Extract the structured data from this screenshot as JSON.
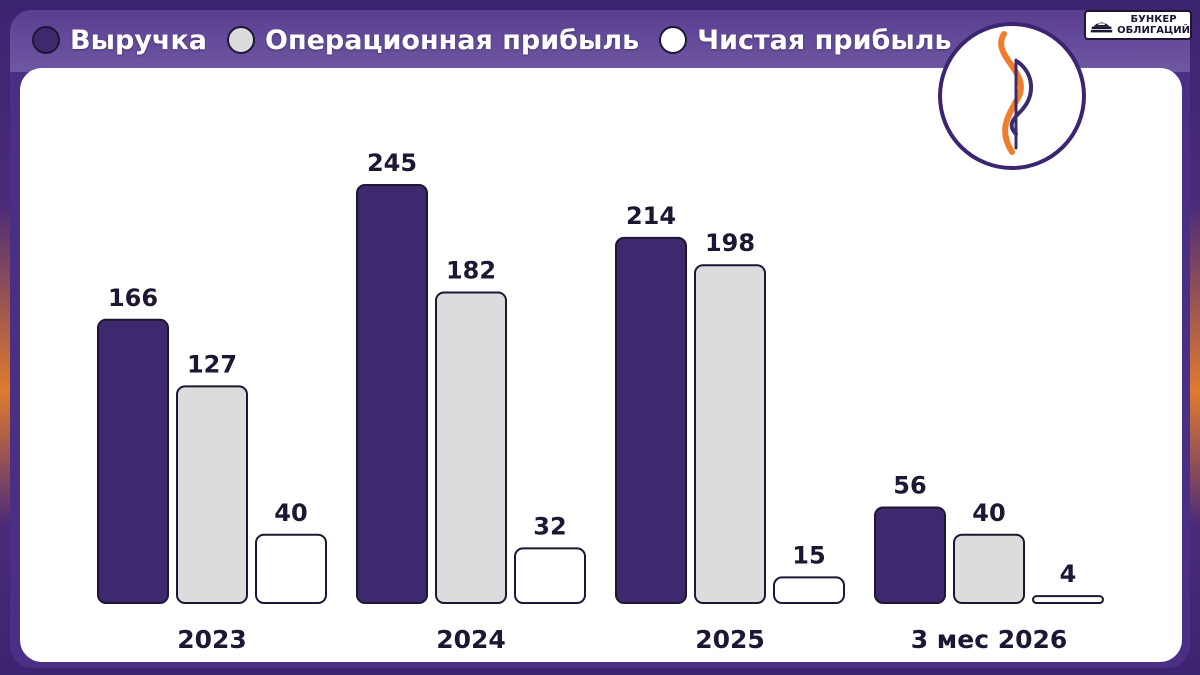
{
  "legend": [
    {
      "label": "Выручка",
      "color": "#3d2a6e"
    },
    {
      "label": "Операционная прибыль",
      "color": "#dcdcdc"
    },
    {
      "label": "Чистая прибыль",
      "color": "#ffffff"
    }
  ],
  "brand": {
    "line1": "БУНКЕР",
    "line2": "ОБЛИГАЦИЙ"
  },
  "chart_data": {
    "type": "bar",
    "title": "",
    "xlabel": "",
    "ylabel": "",
    "grid": false,
    "legend_position": "top-left",
    "categories": [
      "2023",
      "2024",
      "2025",
      "3 мес 2026"
    ],
    "series": [
      {
        "name": "Выручка",
        "values": [
          166,
          245,
          214,
          56
        ],
        "color": "#3d2a6e"
      },
      {
        "name": "Операционная прибыль",
        "values": [
          127,
          182,
          198,
          40
        ],
        "color": "#dcdcdc"
      },
      {
        "name": "Чистая прибыль",
        "values": [
          40,
          32,
          15,
          4
        ],
        "color": "#ffffff"
      }
    ]
  }
}
